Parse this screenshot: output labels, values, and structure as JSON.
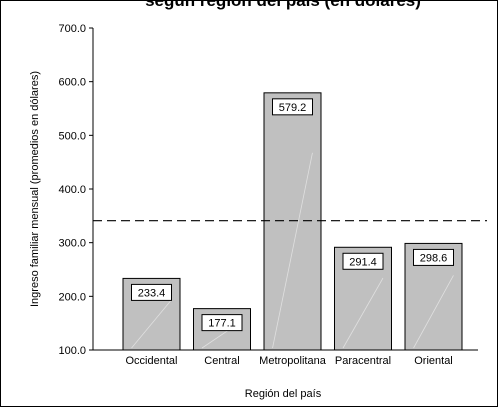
{
  "chart_data": {
    "type": "bar",
    "title": "según región del país (en dólares)",
    "xlabel": "Región del país",
    "ylabel": "Ingreso familiar mensual (promedios en dólares)",
    "categories": [
      "Occidental",
      "Central",
      "Metropolitana",
      "Paracentral",
      "Oriental"
    ],
    "values": [
      233.4,
      177.1,
      579.2,
      291.4,
      298.6
    ],
    "value_labels": [
      "233.4",
      "177.1",
      "579.2",
      "291.4",
      "298.6"
    ],
    "ylim": [
      100,
      700
    ],
    "yticks": [
      100,
      200,
      300,
      400,
      500,
      600,
      700
    ],
    "ytick_labels": [
      "100.0",
      "200.0",
      "300.0",
      "400.0",
      "500.0",
      "600.0",
      "700.0"
    ],
    "reference_line": {
      "value": 341,
      "style": "dashed"
    },
    "grid": false,
    "bar_color": "#c0c0c0",
    "bar_edge_color": "#000000"
  }
}
